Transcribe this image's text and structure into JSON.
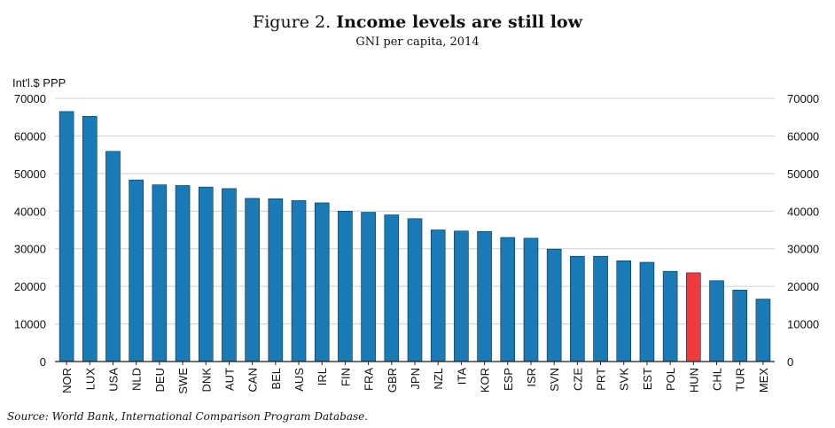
{
  "header": {
    "figure_number": "Figure 2.",
    "title": "Income levels are still low",
    "subtitle": "GNI per capita, 2014"
  },
  "source": {
    "label": "Source:",
    "text": "World Bank, International Comparison Program Database."
  },
  "chart_data": {
    "type": "bar",
    "title": "Income levels are still low",
    "subtitle": "GNI per capita, 2014",
    "ylabel": "Int'l.$ PPP",
    "xlabel": "",
    "ylim": [
      0,
      70000
    ],
    "yticks": [
      0,
      10000,
      20000,
      30000,
      40000,
      50000,
      60000,
      70000
    ],
    "secondary_axis": true,
    "grid": "horizontal",
    "categories": [
      "NOR",
      "LUX",
      "USA",
      "NLD",
      "DEU",
      "SWE",
      "DNK",
      "AUT",
      "CAN",
      "BEL",
      "AUS",
      "IRL",
      "FIN",
      "FRA",
      "GBR",
      "JPN",
      "NZL",
      "ITA",
      "KOR",
      "ESP",
      "ISR",
      "SVN",
      "CZE",
      "PRT",
      "SVK",
      "EST",
      "POL",
      "HUN",
      "CHL",
      "TUR",
      "MEX"
    ],
    "values": [
      66500,
      65200,
      55900,
      48300,
      47000,
      46800,
      46400,
      46000,
      43400,
      43300,
      42800,
      42200,
      40000,
      39700,
      39000,
      38000,
      35000,
      34700,
      34600,
      33000,
      32800,
      29900,
      28000,
      28000,
      26800,
      26400,
      24000,
      23600,
      21500,
      19000,
      16600
    ],
    "highlight": [
      "HUN"
    ],
    "colors": {
      "bar": "#1a7ab5",
      "highlight": "#ee3a3a",
      "grid": "#cfcfcf",
      "axis": "#222222"
    }
  }
}
